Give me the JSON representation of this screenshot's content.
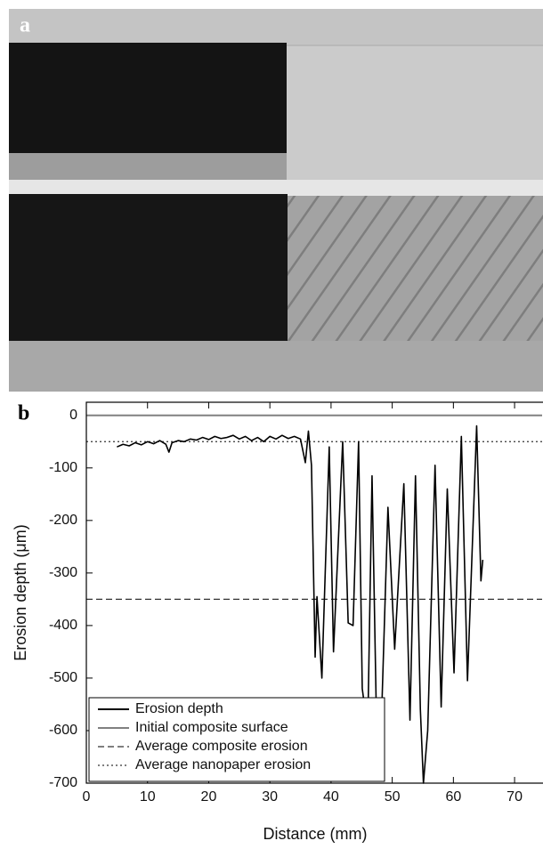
{
  "photo": {
    "panel_label": "a"
  },
  "chart_data": {
    "type": "line",
    "panel_label": "b",
    "x_label": "Distance (mm)",
    "y_label": "Erosion depth (μm)",
    "xlim": [
      0,
      74.5
    ],
    "ylim": [
      -700,
      25
    ],
    "xticks": [
      0,
      10,
      20,
      30,
      40,
      50,
      60,
      70
    ],
    "yticks": [
      0,
      -100,
      -200,
      -300,
      -400,
      -500,
      -600,
      -700
    ],
    "grid": false,
    "legend_position": "lower left",
    "series": [
      {
        "name": "Erosion depth",
        "color": "#000000",
        "style": "solid",
        "x": [
          5,
          6,
          7,
          8,
          9,
          10,
          11,
          12,
          13,
          13.5,
          14,
          15,
          16,
          17,
          18,
          19,
          20,
          21,
          22,
          23,
          24,
          25,
          26,
          27,
          28,
          29,
          30,
          31,
          32,
          33,
          34,
          35,
          35.8,
          36.3,
          36.8,
          37.4,
          37.7,
          38.5,
          39.7,
          40.4,
          41.9,
          42.8,
          43.6,
          44.5,
          45.1,
          46,
          46.7,
          47.5,
          48.2,
          49.3,
          50.4,
          51.9,
          52.9,
          53.8,
          54.6,
          55.1,
          55.8,
          57,
          58,
          59,
          60.1,
          61.3,
          62.3,
          63.8,
          64.5,
          64.8
        ],
        "values": [
          -60,
          -55,
          -58,
          -52,
          -56,
          -50,
          -54,
          -48,
          -55,
          -70,
          -52,
          -48,
          -50,
          -45,
          -47,
          -42,
          -46,
          -40,
          -44,
          -42,
          -38,
          -45,
          -40,
          -48,
          -42,
          -50,
          -40,
          -45,
          -38,
          -44,
          -40,
          -45,
          -90,
          -30,
          -95,
          -460,
          -345,
          -500,
          -60,
          -450,
          -50,
          -395,
          -400,
          -50,
          -520,
          -600,
          -115,
          -630,
          -595,
          -175,
          -445,
          -130,
          -580,
          -115,
          -560,
          -700,
          -600,
          -95,
          -555,
          -140,
          -490,
          -40,
          -505,
          -20,
          -315,
          -275
        ]
      }
    ],
    "reference_lines": [
      {
        "name": "Initial composite surface",
        "value": 0,
        "color": "#808080",
        "style": "solid"
      },
      {
        "name": "Average composite erosion",
        "value": -350,
        "color": "#333333",
        "style": "dashed"
      },
      {
        "name": "Average nanopaper erosion",
        "value": -50,
        "color": "#333333",
        "style": "dotted"
      }
    ]
  }
}
